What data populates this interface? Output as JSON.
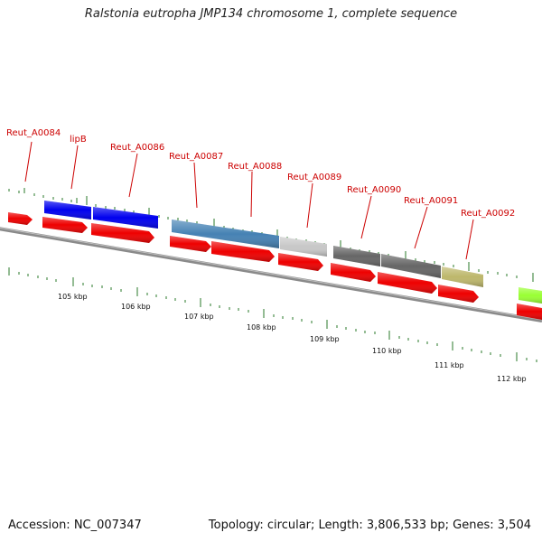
{
  "title": "Ralstonia eutropha JMP134 chromosome 1, complete sequence",
  "footer": {
    "accession": "Accession: NC_007347",
    "summary": "Topology: circular; Length: 3,806,533 bp; Genes: 3,504"
  },
  "colors": {
    "strand_arrow": "#ee0000",
    "backbone": "#8a8a8a",
    "tick": "#2a7a2a",
    "label": "#cc0000"
  },
  "kbp_ticks": [
    "105 kbp",
    "106 kbp",
    "107 kbp",
    "108 kbp",
    "109 kbp",
    "110 kbp",
    "111 kbp",
    "112 kbp"
  ],
  "gene_labels": [
    "Reut_A0084",
    "lipB",
    "Reut_A0086",
    "Reut_A0087",
    "Reut_A0088",
    "Reut_A0089",
    "Reut_A0090",
    "Reut_A0091",
    "Reut_A0092"
  ],
  "feature_colors": [
    "#0000ee",
    "#0000ee",
    "#4682b4",
    "#c8c8c8",
    "#666666",
    "#666666",
    "#bdb76b",
    "#99ff33"
  ]
}
